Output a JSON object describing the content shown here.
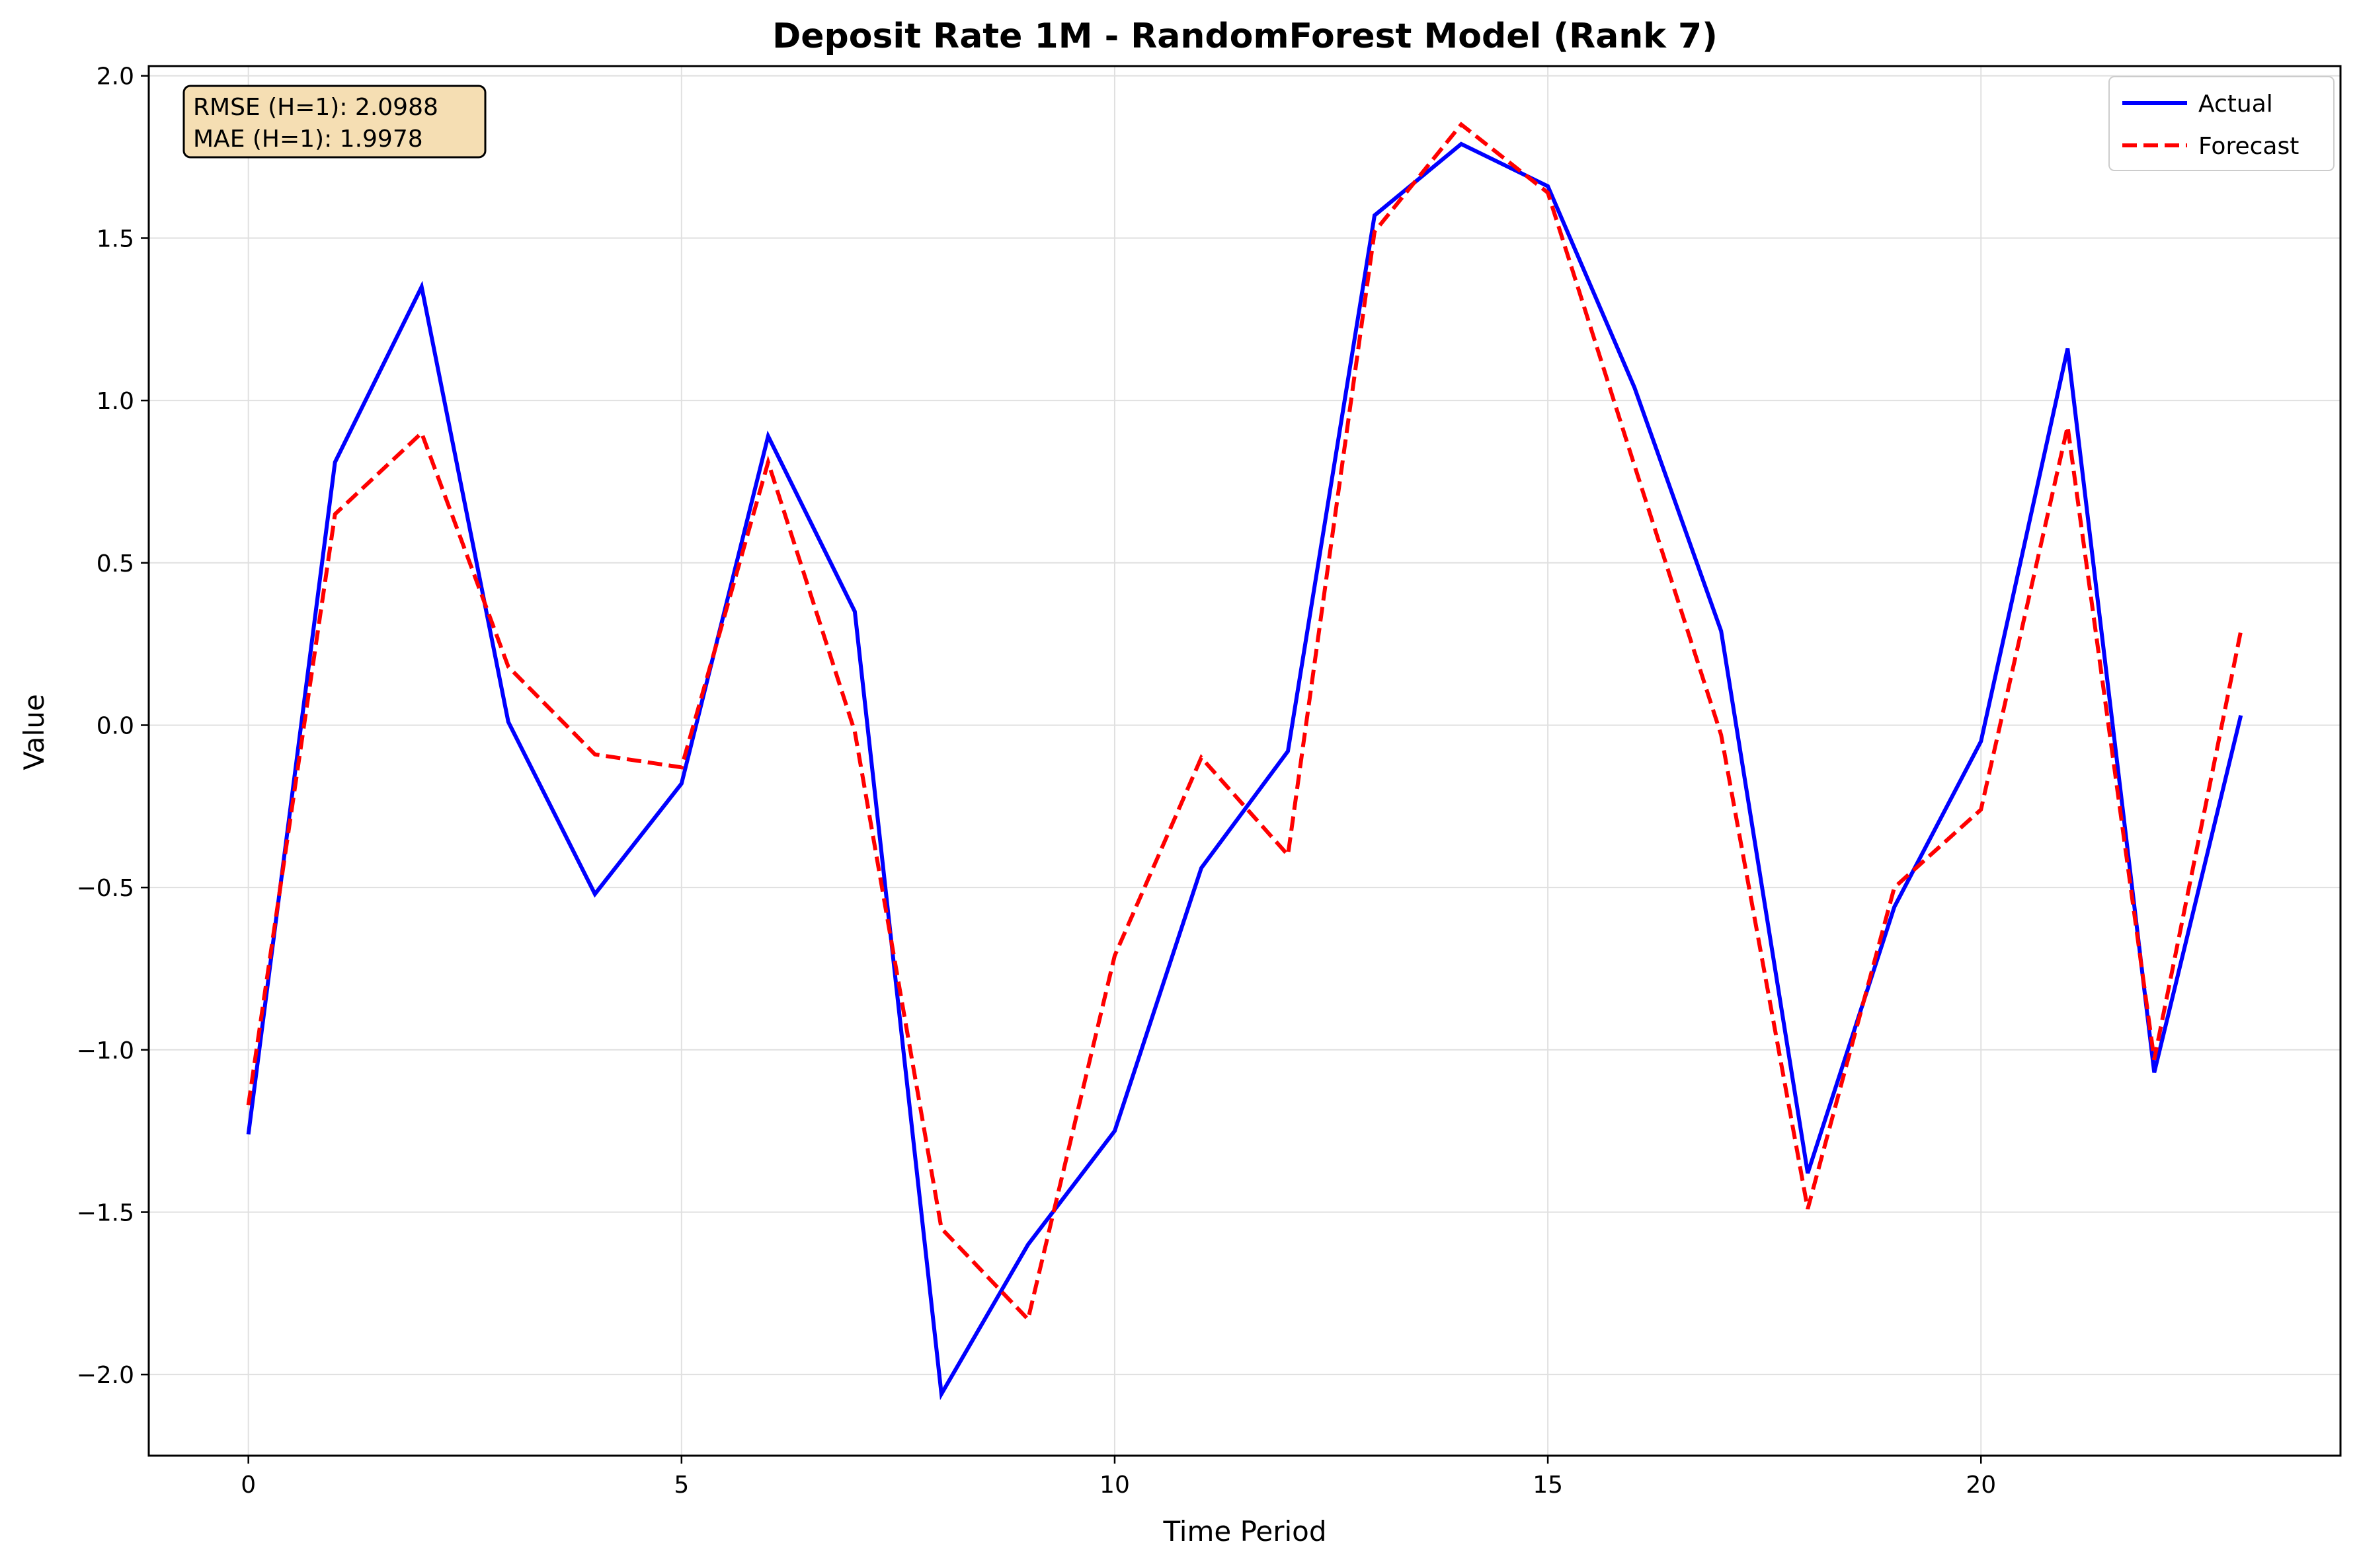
{
  "chart_data": {
    "type": "line",
    "title": "Deposit Rate 1M - RandomForest Model (Rank 7)",
    "xlabel": "Time Period",
    "ylabel": "Value",
    "xlim": [
      -1.15,
      24.15
    ],
    "ylim": [
      -2.25,
      2.03
    ],
    "xticks": [
      0,
      5,
      10,
      15,
      20
    ],
    "xtick_labels": [
      "0",
      "5",
      "10",
      "15",
      "20"
    ],
    "yticks": [
      -2.0,
      -1.5,
      -1.0,
      -0.5,
      0.0,
      0.5,
      1.0,
      1.5,
      2.0
    ],
    "ytick_labels": [
      "−2.0",
      "−1.5",
      "−1.0",
      "−0.5",
      "0.0",
      "0.5",
      "1.0",
      "1.5",
      "2.0"
    ],
    "grid": true,
    "legend_position": "top-right",
    "x": [
      0,
      1,
      2,
      3,
      4,
      5,
      6,
      7,
      8,
      9,
      10,
      11,
      12,
      13,
      14,
      15,
      16,
      17,
      18,
      19,
      20,
      21,
      22,
      23
    ],
    "series": [
      {
        "name": "Actual",
        "color": "#0000ff",
        "style": "solid",
        "values": [
          -1.26,
          0.81,
          1.35,
          0.01,
          -0.52,
          -0.18,
          0.89,
          0.35,
          -2.06,
          -1.6,
          -1.25,
          -0.44,
          -0.08,
          1.57,
          1.79,
          1.66,
          1.04,
          0.29,
          -1.38,
          -0.56,
          -0.05,
          1.16,
          -1.07,
          0.03
        ]
      },
      {
        "name": "Forecast",
        "color": "#ff0000",
        "style": "dashed",
        "values": [
          -1.17,
          0.65,
          0.9,
          0.18,
          -0.09,
          -0.13,
          0.81,
          -0.02,
          -1.55,
          -1.83,
          -0.71,
          -0.1,
          -0.4,
          1.52,
          1.85,
          1.64,
          0.8,
          -0.03,
          -1.49,
          -0.5,
          -0.26,
          0.92,
          -1.03,
          0.29
        ]
      }
    ],
    "annotations": [
      "RMSE (H=1): 2.0988",
      "MAE (H=1): 1.9978"
    ],
    "annotation_box_color": "#f5deb3"
  }
}
